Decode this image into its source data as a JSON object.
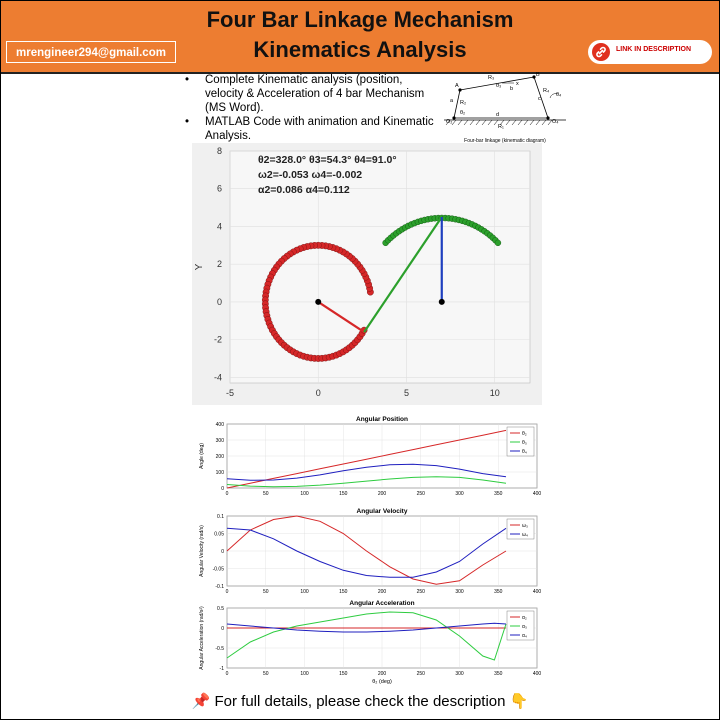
{
  "header": {
    "title_line1": "Four Bar Linkage Mechanism",
    "title_line2": "Kinematics Analysis",
    "email": "mrengineer294@gmail.com",
    "link_label": "LINK IN DESCRIPTION",
    "link_icon": "link-icon",
    "colors": {
      "header_bg": "#ED7D31",
      "link_icon_bg": "#E0301E"
    }
  },
  "bullets": [
    "Complete Kinematic analysis (position, velocity & Acceleration of 4 bar Mechanism (MS Word).",
    "MATLAB Code with animation and Kinematic Analysis."
  ],
  "kinematic_diagram": {
    "caption": "Four-bar linkage (kinematic diagram)",
    "labels": [
      "A",
      "B",
      "R₃",
      "R₂",
      "R₄",
      "R₁",
      "O₂",
      "O₄",
      "a",
      "b",
      "c",
      "d",
      "θ₂",
      "θ₃",
      "θ₄",
      "x"
    ]
  },
  "animation": {
    "readouts": [
      "θ2=328.0°  θ3=54.3°  θ4=91.0°",
      "ω2=-0.053  ω4=-0.002",
      "α2=0.086  α4=0.112"
    ],
    "ylabel": "Y",
    "xticks": [
      "-5",
      "0",
      "5",
      "10"
    ],
    "yticks": [
      "8",
      "6",
      "4",
      "2",
      "0",
      "-2",
      "-4"
    ],
    "xlim": [
      -5,
      12
    ],
    "ylim": [
      -4.3,
      8
    ],
    "colors": {
      "crank": "#d62728",
      "coupler": "#2ca02c",
      "rocker": "#1f3fbf"
    }
  },
  "chart_data": [
    {
      "type": "line",
      "title": "Angular Position",
      "xlabel": "",
      "ylabel": "Angle (deg)",
      "xlim": [
        0,
        400
      ],
      "ylim": [
        0,
        400
      ],
      "x": [
        0,
        30,
        60,
        90,
        120,
        150,
        180,
        210,
        240,
        270,
        300,
        330,
        360
      ],
      "series": [
        {
          "name": "θ₂",
          "color": "#d62728",
          "values": [
            0,
            30,
            60,
            90,
            120,
            150,
            180,
            210,
            240,
            270,
            300,
            330,
            360
          ]
        },
        {
          "name": "θ₃",
          "color": "#2ecc40",
          "values": [
            22,
            12,
            8,
            10,
            18,
            30,
            43,
            56,
            66,
            70,
            66,
            50,
            30
          ]
        },
        {
          "name": "θ₄",
          "color": "#1f1fbf",
          "values": [
            58,
            48,
            50,
            62,
            82,
            108,
            130,
            145,
            148,
            140,
            118,
            90,
            70
          ]
        }
      ],
      "legend": "top-right",
      "xticks": [
        "0",
        "50",
        "100",
        "150",
        "200",
        "250",
        "300",
        "350",
        "400"
      ],
      "yticks": [
        "0",
        "100",
        "200",
        "300",
        "400"
      ]
    },
    {
      "type": "line",
      "title": "Angular Velocity",
      "xlabel": "",
      "ylabel": "Angular Velocity (rad/s)",
      "xlim": [
        0,
        400
      ],
      "ylim": [
        -0.1,
        0.1
      ],
      "x": [
        0,
        30,
        60,
        90,
        120,
        150,
        180,
        210,
        240,
        270,
        300,
        330,
        360
      ],
      "series": [
        {
          "name": "ω₃",
          "color": "#d62728",
          "values": [
            0.0,
            0.06,
            0.09,
            0.1,
            0.085,
            0.05,
            0.0,
            -0.045,
            -0.08,
            -0.095,
            -0.085,
            -0.04,
            0.0
          ]
        },
        {
          "name": "ω₄",
          "color": "#1f1fbf",
          "values": [
            0.065,
            0.06,
            0.035,
            0.0,
            -0.03,
            -0.055,
            -0.07,
            -0.075,
            -0.075,
            -0.06,
            -0.03,
            0.02,
            0.065
          ]
        }
      ],
      "legend": "top-right",
      "xticks": [
        "0",
        "50",
        "100",
        "150",
        "200",
        "250",
        "300",
        "350",
        "400"
      ],
      "yticks": [
        "0.1",
        "0.05",
        "0",
        "-0.05",
        "-0.1"
      ]
    },
    {
      "type": "line",
      "title": "Angular Acceleration",
      "xlabel": "θ₂ (deg)",
      "ylabel": "Angular Acceleration (rad/s²)",
      "xlim": [
        0,
        400
      ],
      "ylim": [
        -1,
        0.5
      ],
      "x": [
        0,
        30,
        60,
        90,
        120,
        150,
        180,
        210,
        240,
        270,
        300,
        330,
        345,
        360
      ],
      "series": [
        {
          "name": "α₂",
          "color": "#d62728",
          "values": [
            0.0,
            0.0,
            0.0,
            0.0,
            0.0,
            0.0,
            0.0,
            0.0,
            0.0,
            0.0,
            0.0,
            0.0,
            0.0,
            0.0
          ]
        },
        {
          "name": "α₃",
          "color": "#2ecc40",
          "values": [
            -0.75,
            -0.35,
            -0.1,
            0.05,
            0.15,
            0.25,
            0.35,
            0.4,
            0.38,
            0.2,
            -0.2,
            -0.7,
            -0.8,
            0.1
          ]
        },
        {
          "name": "α₄",
          "color": "#1f1fbf",
          "values": [
            0.1,
            0.05,
            0.0,
            -0.05,
            -0.08,
            -0.1,
            -0.1,
            -0.08,
            -0.05,
            0.0,
            0.05,
            0.1,
            0.12,
            0.1
          ]
        }
      ],
      "legend": "top-right",
      "xticks": [
        "0",
        "50",
        "100",
        "150",
        "200",
        "250",
        "300",
        "350",
        "400"
      ],
      "yticks": [
        "0.5",
        "0",
        "-0.5",
        "-1"
      ]
    }
  ],
  "footer": {
    "text": "For full details, please check the description",
    "pin_icon": "pushpin-icon",
    "pointer_icon": "pointing-hand-icon"
  }
}
